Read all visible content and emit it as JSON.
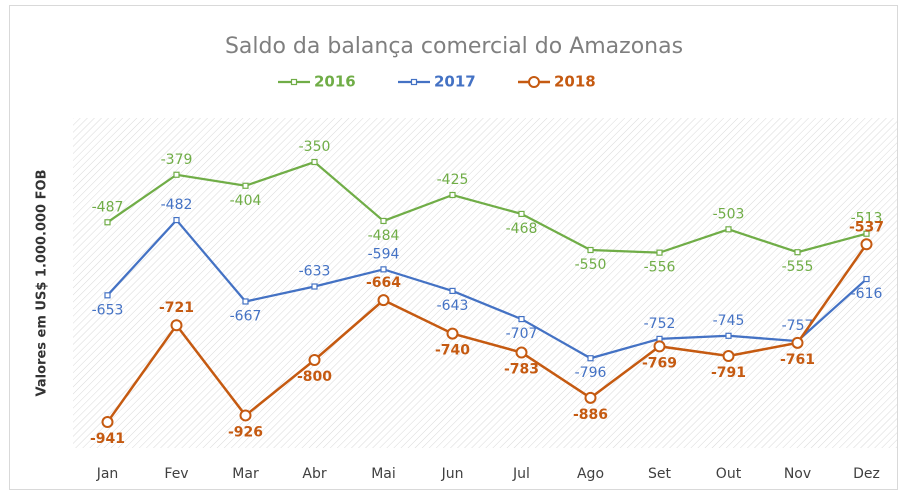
{
  "chart_data": {
    "type": "line",
    "title": "Saldo da balança comercial do Amazonas",
    "y_label": "Valores em US$ 1.000.000 FOB",
    "categories": [
      "Jan",
      "Fev",
      "Mar",
      "Abr",
      "Mai",
      "Jun",
      "Jul",
      "Ago",
      "Set",
      "Out",
      "Nov",
      "Dez"
    ],
    "series": [
      {
        "name": "2016",
        "color": "#70ad47",
        "values": [
          -487,
          -379,
          -404,
          -350,
          -484,
          -425,
          -468,
          -550,
          -556,
          -503,
          -555,
          -513
        ]
      },
      {
        "name": "2017",
        "color": "#4472c4",
        "values": [
          -653,
          -482,
          -667,
          -633,
          -594,
          -643,
          -707,
          -796,
          -752,
          -745,
          -757,
          -616
        ]
      },
      {
        "name": "2018",
        "color": "#c55a11",
        "values": [
          -941,
          -721,
          -926,
          -800,
          -664,
          -740,
          -783,
          -886,
          -769,
          -791,
          -761,
          -537
        ]
      }
    ],
    "ylim": [
      -1000,
      -250
    ]
  }
}
